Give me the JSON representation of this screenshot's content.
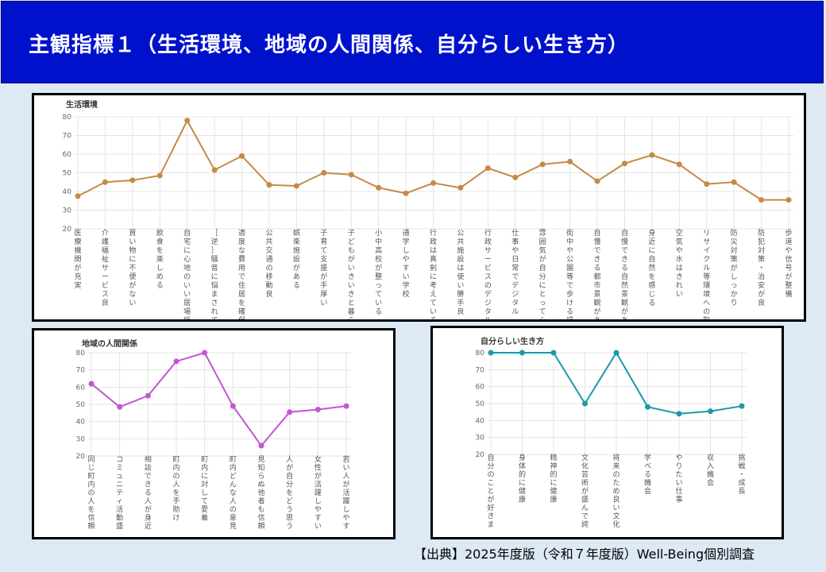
{
  "header": {
    "title": "主観指標１（生活環境、地域の人間関係、自分らしい生き方）"
  },
  "source_note": "【出典】2025年度版（令和７年度版）Well-Being個別調査",
  "chart_data": [
    {
      "id": "life",
      "type": "line",
      "title": "生活環境",
      "color": "#c58a44",
      "ylim": [
        20,
        80
      ],
      "yticks": [
        20,
        30,
        40,
        50,
        60,
        70,
        80
      ],
      "grid": true,
      "categories": [
        "医療機関が充実",
        "介護福祉サービス良",
        "買い物に不便がない",
        "飲食を楽しめる",
        "自宅に心地のいい居場所",
        "［逆］騒音に悩まされている",
        "適度な費用で住居を確保",
        "公共交通の移動良",
        "娯楽施設がある",
        "子育て支援が手厚い",
        "子どもがいきいきと暮らせる",
        "小中高校が整っている",
        "通学しやすい学校",
        "行政は真剣に考えている",
        "公共施設は使い勝手良",
        "行政サービスのデジタル化良",
        "仕事や日常でデジタル",
        "雰囲気が自分にとって心地よい",
        "街中や公園等で歩ける場所",
        "自慢できる都市景観がある",
        "自慢できる自然景観がある",
        "身近に自然を感じる",
        "空気や水はきれい",
        "リサイクル等環境への取組良",
        "防災対策がしっかり",
        "防犯対策・治安が良",
        "歩道や信号が整備"
      ],
      "values": [
        37.5,
        45,
        46,
        48.5,
        78,
        51.5,
        59,
        43.5,
        43,
        50,
        49,
        42,
        39,
        44.5,
        42,
        52.5,
        47.5,
        54.5,
        56,
        45.5,
        55,
        59.5,
        54.5,
        44,
        45,
        35.5,
        35.5
      ]
    },
    {
      "id": "community",
      "type": "line",
      "title": "地域の人間関係",
      "color": "#c455d4",
      "ylim": [
        20,
        80
      ],
      "yticks": [
        20,
        30,
        40,
        50,
        60,
        70,
        80
      ],
      "grid": true,
      "categories": [
        "同じ町内の人を信頼",
        "コミュニティ活動盛ん",
        "相談できる人が身近",
        "町内の人を手助け",
        "町内に対して愛着",
        "町内どんな人の意見も受入",
        "見知らぬ他者も信頼",
        "人が自分をどう思うか気に",
        "女性が活躍しやすい",
        "若い人が活躍しやすい"
      ],
      "values": [
        62,
        48.5,
        55,
        75,
        80,
        49,
        26,
        45.5,
        47,
        49
      ]
    },
    {
      "id": "self",
      "type": "line",
      "title": "自分らしい生き方",
      "color": "#1a9aa8",
      "ylim": [
        20,
        80
      ],
      "yticks": [
        20,
        30,
        40,
        50,
        60,
        70,
        80
      ],
      "grid": true,
      "categories": [
        "自分のことが好きまし",
        "身体的に健康",
        "精神的に健康",
        "文化芸術が盛んで誇らしい",
        "将来のため良い文化等を残し",
        "学べる機会",
        "やりたい仕事",
        "収入機会",
        "挑戦・成長"
      ],
      "values": [
        80,
        80,
        80,
        50,
        80,
        48,
        44,
        45.5,
        48.5
      ]
    }
  ]
}
